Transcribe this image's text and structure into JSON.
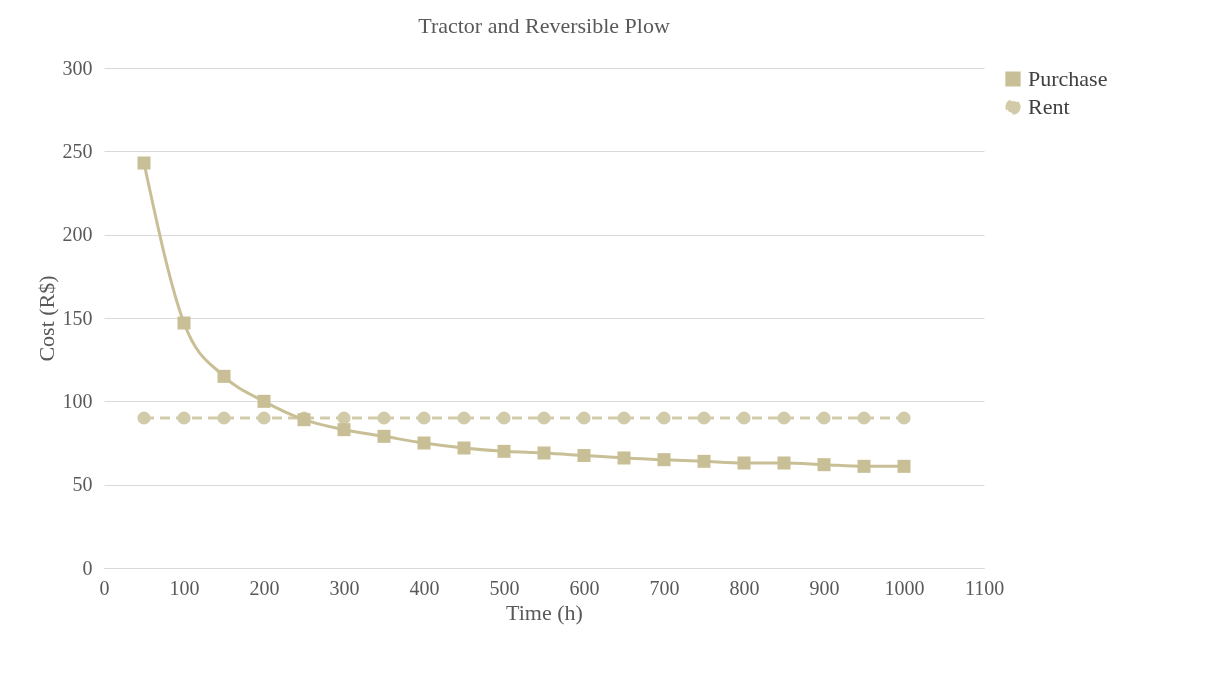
{
  "chart_data": {
    "type": "line",
    "title": "Tractor and Reversible Plow",
    "xlabel": "Time (h)",
    "ylabel": "Cost (R$)",
    "x": [
      50,
      100,
      150,
      200,
      250,
      300,
      350,
      400,
      450,
      500,
      550,
      600,
      650,
      700,
      750,
      800,
      850,
      900,
      950,
      1000
    ],
    "series": [
      {
        "name": "Purchase",
        "color": "#c9bf96",
        "marker": "square",
        "line_style": "solid",
        "values": [
          243,
          147,
          115,
          100,
          89,
          83,
          79,
          75,
          72,
          70,
          69,
          67.5,
          66,
          65,
          64,
          63,
          63,
          62,
          61,
          61
        ]
      },
      {
        "name": "Rent",
        "color": "#d2cba9",
        "marker": "circle",
        "line_style": "dashed",
        "values": [
          90,
          90,
          90,
          90,
          90,
          90,
          90,
          90,
          90,
          90,
          90,
          90,
          90,
          90,
          90,
          90,
          90,
          90,
          90,
          90
        ]
      }
    ],
    "xlim": [
      0,
      1100
    ],
    "xticks": [
      0,
      100,
      200,
      300,
      400,
      500,
      600,
      700,
      800,
      900,
      1000,
      1100
    ],
    "ylim": [
      0,
      300
    ],
    "yticks": [
      0,
      50,
      100,
      150,
      200,
      250,
      300
    ],
    "grid": "y",
    "legend": "right"
  }
}
